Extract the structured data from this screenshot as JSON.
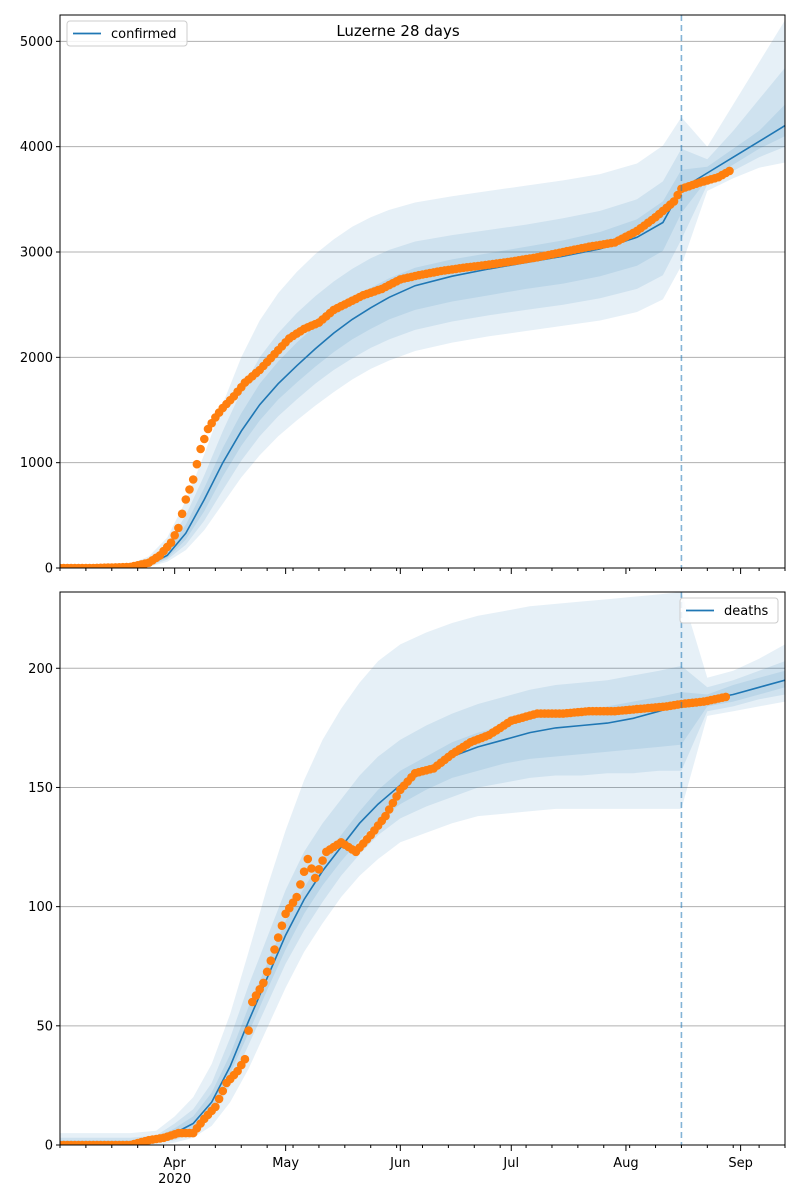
{
  "figure": {
    "title": "Luzerne 28 days",
    "x_tick_labels": [
      "Apr",
      "May",
      "Jun",
      "Jul",
      "Aug",
      "Sep"
    ],
    "x_year_label": "2020"
  },
  "colors": {
    "model_line": "#1f77b4",
    "observed": "#ff7f0e",
    "band": "#1f77b4",
    "grid": "#b0b0b0",
    "forecast_line": "#1f77b4"
  },
  "chart_data": [
    {
      "type": "line",
      "name": "confirmed-panel",
      "legend": "confirmed",
      "legend_position": "top-left",
      "x_range": [
        "2020-03-01",
        "2020-09-13"
      ],
      "ylim": [
        0,
        5250
      ],
      "y_ticks": [
        0,
        1000,
        2000,
        3000,
        4000,
        5000
      ],
      "grid": "horizontal",
      "forecast_start": "2020-08-16",
      "model": {
        "x": [
          "2020-03-01",
          "2020-03-10",
          "2020-03-20",
          "2020-03-25",
          "2020-03-30",
          "2020-04-04",
          "2020-04-09",
          "2020-04-14",
          "2020-04-19",
          "2020-04-24",
          "2020-04-29",
          "2020-05-04",
          "2020-05-09",
          "2020-05-14",
          "2020-05-19",
          "2020-05-24",
          "2020-05-29",
          "2020-06-05",
          "2020-06-15",
          "2020-06-25",
          "2020-07-05",
          "2020-07-15",
          "2020-07-25",
          "2020-08-04",
          "2020-08-11",
          "2020-08-16",
          "2020-08-23",
          "2020-08-30",
          "2020-09-06",
          "2020-09-13"
        ],
        "y": [
          0,
          0,
          5,
          30,
          120,
          330,
          650,
          1000,
          1300,
          1550,
          1750,
          1920,
          2080,
          2230,
          2360,
          2470,
          2570,
          2680,
          2770,
          2840,
          2900,
          2960,
          3030,
          3140,
          3280,
          3600,
          3750,
          3900,
          4050,
          4200
        ],
        "bands": [
          {
            "lower": [
              0,
              0,
              0,
              10,
              60,
              170,
              360,
              610,
              860,
              1070,
              1250,
              1400,
              1540,
              1670,
              1790,
              1890,
              1970,
              2060,
              2140,
              2200,
              2250,
              2300,
              2350,
              2430,
              2550,
              2870,
              3580,
              3700,
              3800,
              3850
            ],
            "upper": [
              15,
              15,
              40,
              110,
              290,
              640,
              1080,
              1560,
              2000,
              2350,
              2610,
              2810,
              2980,
              3120,
              3240,
              3330,
              3400,
              3470,
              3530,
              3580,
              3630,
              3680,
              3740,
              3840,
              4010,
              4280,
              4000,
              4400,
              4800,
              5200
            ]
          },
          {
            "lower": [
              0,
              0,
              0,
              15,
              80,
              220,
              450,
              740,
              1020,
              1250,
              1440,
              1600,
              1750,
              1880,
              1990,
              2090,
              2170,
              2260,
              2340,
              2400,
              2450,
              2500,
              2560,
              2650,
              2780,
              3120,
              3640,
              3770,
              3900,
              4000
            ],
            "upper": [
              10,
              10,
              25,
              80,
              220,
              500,
              880,
              1300,
              1680,
              2000,
              2230,
              2420,
              2580,
              2720,
              2840,
              2940,
              3020,
              3100,
              3160,
              3210,
              3260,
              3320,
              3390,
              3500,
              3670,
              3980,
              3880,
              4150,
              4450,
              4750
            ]
          },
          {
            "lower": [
              0,
              0,
              0,
              20,
              95,
              270,
              540,
              870,
              1160,
              1400,
              1600,
              1760,
              1910,
              2050,
              2170,
              2270,
              2360,
              2450,
              2530,
              2590,
              2650,
              2700,
              2770,
              2870,
              3010,
              3370,
              3690,
              3830,
              3980,
              4100
            ],
            "upper": [
              6,
              6,
              15,
              55,
              170,
              410,
              760,
              1140,
              1470,
              1750,
              1960,
              2140,
              2300,
              2440,
              2560,
              2660,
              2750,
              2850,
              2930,
              2990,
              3050,
              3110,
              3190,
              3310,
              3480,
              3780,
              3810,
              3980,
              4150,
              4400
            ]
          }
        ]
      },
      "observed": {
        "x": [
          "2020-03-01",
          "2020-03-10",
          "2020-03-20",
          "2020-03-25",
          "2020-03-28",
          "2020-03-31",
          "2020-04-02",
          "2020-04-04",
          "2020-04-06",
          "2020-04-08",
          "2020-04-10",
          "2020-04-12",
          "2020-04-14",
          "2020-04-17",
          "2020-04-20",
          "2020-04-24",
          "2020-04-28",
          "2020-05-02",
          "2020-05-06",
          "2020-05-10",
          "2020-05-14",
          "2020-05-18",
          "2020-05-22",
          "2020-05-27",
          "2020-06-01",
          "2020-06-06",
          "2020-06-12",
          "2020-06-18",
          "2020-06-25",
          "2020-07-01",
          "2020-07-08",
          "2020-07-15",
          "2020-07-22",
          "2020-07-29",
          "2020-08-04",
          "2020-08-09",
          "2020-08-14",
          "2020-08-16",
          "2020-08-21",
          "2020-08-26",
          "2020-08-29"
        ],
        "y": [
          0,
          0,
          10,
          50,
          120,
          240,
          380,
          650,
          840,
          1130,
          1320,
          1430,
          1520,
          1630,
          1760,
          1880,
          2030,
          2180,
          2270,
          2330,
          2450,
          2520,
          2590,
          2650,
          2740,
          2780,
          2820,
          2850,
          2880,
          2910,
          2950,
          3000,
          3050,
          3090,
          3200,
          3330,
          3480,
          3600,
          3660,
          3710,
          3770
        ]
      }
    },
    {
      "type": "line",
      "name": "deaths-panel",
      "legend": "deaths",
      "legend_position": "top-right",
      "x_range": [
        "2020-03-01",
        "2020-09-13"
      ],
      "ylim": [
        0,
        232
      ],
      "y_ticks": [
        0,
        50,
        100,
        150,
        200
      ],
      "grid": "horizontal",
      "forecast_start": "2020-08-16",
      "model": {
        "x": [
          "2020-03-01",
          "2020-03-20",
          "2020-03-27",
          "2020-04-01",
          "2020-04-06",
          "2020-04-11",
          "2020-04-16",
          "2020-04-21",
          "2020-04-26",
          "2020-05-01",
          "2020-05-06",
          "2020-05-11",
          "2020-05-16",
          "2020-05-21",
          "2020-05-26",
          "2020-06-01",
          "2020-06-08",
          "2020-06-15",
          "2020-06-22",
          "2020-06-29",
          "2020-07-06",
          "2020-07-13",
          "2020-07-20",
          "2020-07-27",
          "2020-08-03",
          "2020-08-10",
          "2020-08-16",
          "2020-08-23",
          "2020-08-30",
          "2020-09-06",
          "2020-09-13"
        ],
        "y": [
          0,
          0,
          2,
          5,
          9,
          18,
          33,
          52,
          70,
          88,
          103,
          115,
          125,
          135,
          143,
          151,
          157,
          163,
          167,
          170,
          173,
          175,
          176,
          177,
          179,
          182,
          185,
          187,
          189,
          192,
          195
        ],
        "bands": [
          {
            "lower": [
              0,
              0,
              0,
              1,
              3,
              8,
              18,
              32,
              49,
              66,
              81,
              93,
              104,
              113,
              120,
              127,
              131,
              135,
              138,
              139,
              140,
              141,
              141,
              141,
              141,
              141,
              141,
              180,
              182,
              184,
              186
            ],
            "upper": [
              5,
              5,
              6,
              12,
              20,
              34,
              55,
              81,
              108,
              132,
              153,
              170,
              183,
              194,
              203,
              210,
              215,
              219,
              222,
              224,
              226,
              227,
              228,
              229,
              230,
              231,
              232,
              196,
              199,
              204,
              210
            ]
          },
          {
            "lower": [
              0,
              0,
              1,
              2,
              5,
              12,
              25,
              42,
              59,
              76,
              90,
              102,
              113,
              122,
              130,
              137,
              142,
              146,
              150,
              152,
              154,
              155,
              155,
              156,
              156,
              157,
              157,
              182,
              184,
              187,
              189
            ],
            "upper": [
              3,
              3,
              4,
              9,
              15,
              26,
              45,
              67,
              87,
              107,
              123,
              135,
              145,
              155,
              163,
              170,
              176,
              181,
              185,
              188,
              191,
              193,
              194,
              195,
              197,
              199,
              201,
              192,
              195,
              199,
              203
            ]
          },
          {
            "lower": [
              0,
              0,
              1,
              3,
              7,
              15,
              30,
              47,
              65,
              82,
              97,
              109,
              119,
              128,
              136,
              143,
              149,
              154,
              157,
              160,
              162,
              163,
              164,
              165,
              166,
              167,
              168,
              184,
              186,
              189,
              192
            ],
            "upper": [
              2,
              2,
              3,
              7,
              12,
              22,
              38,
              58,
              76,
              94,
              108,
              120,
              130,
              140,
              149,
              157,
              163,
              169,
              173,
              176,
              179,
              181,
              182,
              184,
              186,
              188,
              190,
              189,
              193,
              196,
              199
            ]
          }
        ]
      },
      "observed": {
        "x": [
          "2020-03-01",
          "2020-03-20",
          "2020-03-25",
          "2020-03-29",
          "2020-04-02",
          "2020-04-06",
          "2020-04-09",
          "2020-04-12",
          "2020-04-15",
          "2020-04-18",
          "2020-04-20",
          "2020-04-22",
          "2020-04-25",
          "2020-04-28",
          "2020-05-01",
          "2020-05-04",
          "2020-05-07",
          "2020-05-09",
          "2020-05-12",
          "2020-05-16",
          "2020-05-20",
          "2020-05-24",
          "2020-05-28",
          "2020-06-01",
          "2020-06-05",
          "2020-06-10",
          "2020-06-15",
          "2020-06-20",
          "2020-06-25",
          "2020-07-01",
          "2020-07-08",
          "2020-07-15",
          "2020-07-22",
          "2020-07-29",
          "2020-08-05",
          "2020-08-12",
          "2020-08-16",
          "2020-08-22",
          "2020-08-28"
        ],
        "y": [
          0,
          0,
          2,
          3,
          5,
          5,
          11,
          16,
          26,
          31,
          36,
          60,
          68,
          82,
          97,
          104,
          120,
          112,
          123,
          127,
          123,
          130,
          138,
          149,
          156,
          158,
          164,
          169,
          172,
          178,
          181,
          181,
          182,
          182,
          183,
          184,
          185,
          186,
          188
        ]
      }
    }
  ]
}
